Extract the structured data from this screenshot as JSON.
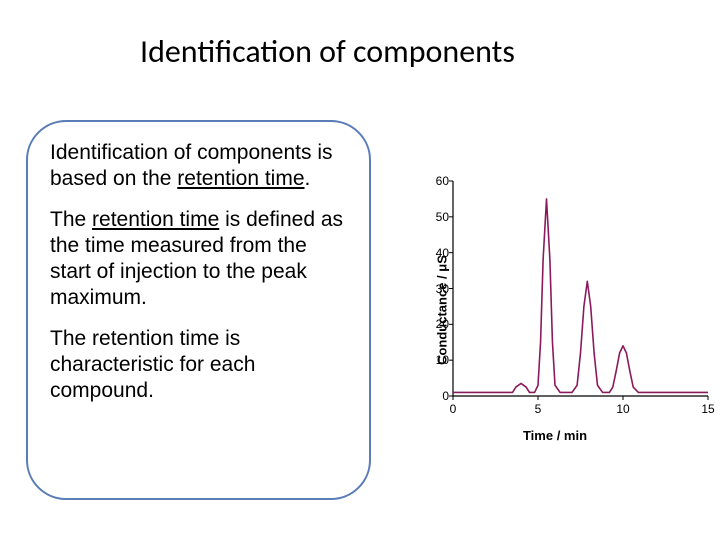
{
  "title": "Identification of components",
  "bubble": {
    "p1_a": "Identification of components is based on the ",
    "p1_u": "retention time",
    "p1_b": ".",
    "p2_a": "The ",
    "p2_u": "retention time",
    "p2_b": " is defined as the time measured from the start of injection to the peak maximum.",
    "p3": "The retention time is characteristic for each compound."
  },
  "chart": {
    "type": "line",
    "ylabel_html": "Conductance / μS",
    "xlabel_html": "Time / min",
    "xlim": [
      0,
      15
    ],
    "ylim": [
      0,
      60
    ],
    "ytick_step": 10,
    "xtick_step": 5,
    "line_color": "#8b1a5c",
    "line_width": 1.6,
    "axis_color": "#000000",
    "tick_color": "#000000",
    "background_color": "#ffffff",
    "font_family": "Arial",
    "tick_fontsize": 12,
    "label_fontsize": 13,
    "label_fontweight": "bold",
    "data": [
      {
        "x": 0.0,
        "y": 1.0
      },
      {
        "x": 3.5,
        "y": 1.0
      },
      {
        "x": 3.7,
        "y": 2.5
      },
      {
        "x": 4.0,
        "y": 3.5
      },
      {
        "x": 4.3,
        "y": 2.5
      },
      {
        "x": 4.5,
        "y": 1.0
      },
      {
        "x": 4.8,
        "y": 1.0
      },
      {
        "x": 5.0,
        "y": 3.0
      },
      {
        "x": 5.15,
        "y": 15.0
      },
      {
        "x": 5.3,
        "y": 38.0
      },
      {
        "x": 5.5,
        "y": 55.0
      },
      {
        "x": 5.7,
        "y": 38.0
      },
      {
        "x": 5.85,
        "y": 15.0
      },
      {
        "x": 6.0,
        "y": 3.0
      },
      {
        "x": 6.3,
        "y": 1.0
      },
      {
        "x": 7.0,
        "y": 1.0
      },
      {
        "x": 7.3,
        "y": 3.0
      },
      {
        "x": 7.5,
        "y": 12.0
      },
      {
        "x": 7.7,
        "y": 25.0
      },
      {
        "x": 7.9,
        "y": 32.0
      },
      {
        "x": 8.1,
        "y": 25.0
      },
      {
        "x": 8.3,
        "y": 12.0
      },
      {
        "x": 8.5,
        "y": 3.0
      },
      {
        "x": 8.8,
        "y": 1.0
      },
      {
        "x": 9.2,
        "y": 1.0
      },
      {
        "x": 9.4,
        "y": 2.5
      },
      {
        "x": 9.6,
        "y": 7.0
      },
      {
        "x": 9.8,
        "y": 12.0
      },
      {
        "x": 10.0,
        "y": 14.0
      },
      {
        "x": 10.2,
        "y": 12.0
      },
      {
        "x": 10.4,
        "y": 7.0
      },
      {
        "x": 10.6,
        "y": 2.5
      },
      {
        "x": 10.9,
        "y": 1.0
      },
      {
        "x": 15.0,
        "y": 1.0
      }
    ]
  }
}
